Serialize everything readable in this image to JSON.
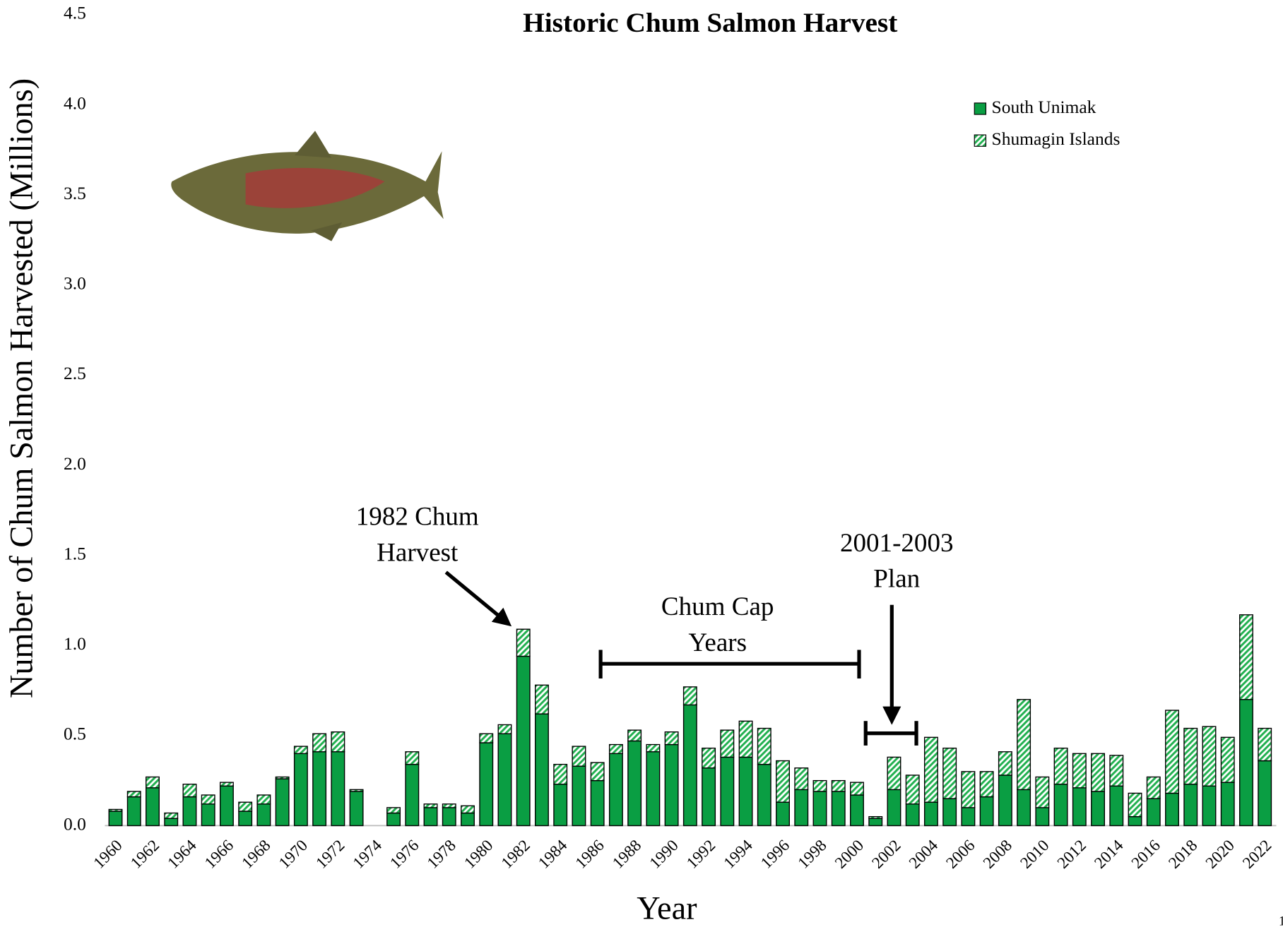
{
  "chart_data": {
    "type": "stacked_bar",
    "title": "Historic Chum Salmon Harvest",
    "x_label": "Year",
    "y_label": "Number of Chum Salmon Harvested (Millions)",
    "categories": [
      "1960",
      null,
      "1962",
      null,
      "1964",
      null,
      "1966",
      null,
      "1968",
      null,
      "1970",
      null,
      "1972",
      null,
      "1974",
      null,
      "1976",
      null,
      "1978",
      null,
      "1980",
      null,
      "1982",
      null,
      "1984",
      null,
      "1986",
      null,
      "1988",
      null,
      "1990",
      null,
      "1992",
      null,
      "1994",
      null,
      "1996",
      null,
      "1998",
      null,
      "2000",
      null,
      "2002",
      null,
      "2004",
      null,
      "2006",
      null,
      "2008",
      null,
      "2010",
      null,
      "2012",
      null,
      "2014",
      null,
      "2016",
      null,
      "2018",
      null,
      "2020",
      null,
      "2022"
    ],
    "series": [
      {
        "name": "South Unimak",
        "color": "#0a9e43",
        "values": [
          0.08,
          0.16,
          0.21,
          0.04,
          0.16,
          0.12,
          0.22,
          0.08,
          0.12,
          0.26,
          0.4,
          0.41,
          0.41,
          0.19,
          0,
          0.07,
          0.34,
          0.1,
          0.1,
          0.07,
          0.46,
          0.51,
          0.94,
          0.62,
          0.23,
          0.33,
          0.25,
          0.4,
          0.47,
          0.41,
          0.45,
          0.67,
          0.32,
          0.38,
          0.38,
          0.34,
          0.13,
          0.2,
          0.19,
          0.19,
          0.17,
          0.04,
          0.2,
          0.12,
          0.13,
          0.15,
          0.1,
          0.16,
          0.28,
          0.2,
          0.1,
          0.23,
          0.21,
          0.19,
          0.22,
          0.05,
          0.15,
          0.18,
          0.23,
          0.22,
          0.24,
          0.7,
          0.36
        ]
      },
      {
        "name": "Shumagin Islands",
        "color": "#22b050",
        "values": [
          0.01,
          0.03,
          0.06,
          0.03,
          0.07,
          0.05,
          0.02,
          0.05,
          0.05,
          0.01,
          0.04,
          0.1,
          0.11,
          0.01,
          0,
          0.03,
          0.07,
          0.02,
          0.02,
          0.04,
          0.05,
          0.05,
          0.15,
          0.16,
          0.11,
          0.11,
          0.1,
          0.05,
          0.06,
          0.04,
          0.07,
          0.1,
          0.11,
          0.15,
          0.2,
          0.2,
          0.23,
          0.12,
          0.06,
          0.06,
          0.07,
          0.01,
          0.18,
          0.16,
          0.36,
          0.28,
          0.2,
          0.14,
          0.13,
          0.5,
          0.17,
          0.2,
          0.19,
          0.21,
          0.17,
          0.13,
          0.12,
          0.46,
          0.31,
          0.33,
          0.25,
          0.47,
          0.18
        ]
      }
    ],
    "ylim": [
      0,
      4.5
    ],
    "yticks": [
      {
        "value": 0,
        "label": "0.0"
      },
      {
        "value": 0.5,
        "label": "0.5"
      },
      {
        "value": 1,
        "label": "1.0"
      },
      {
        "value": 1.5,
        "label": "1.5"
      },
      {
        "value": 2,
        "label": "2.0"
      },
      {
        "value": 2.5,
        "label": "2.5"
      },
      {
        "value": 3,
        "label": "3.0"
      },
      {
        "value": 3.5,
        "label": "3.5"
      },
      {
        "value": 4,
        "label": "4.0"
      },
      {
        "value": 4.5,
        "label": "4.5"
      }
    ],
    "legend": "top-right",
    "annotations": [
      {
        "lines": [
          "1982 Chum",
          "Harvest"
        ]
      },
      {
        "lines": [
          "Chum Cap",
          "Years"
        ]
      },
      {
        "lines": [
          "2001-2003",
          "Plan"
        ]
      }
    ],
    "page_number": "1"
  }
}
